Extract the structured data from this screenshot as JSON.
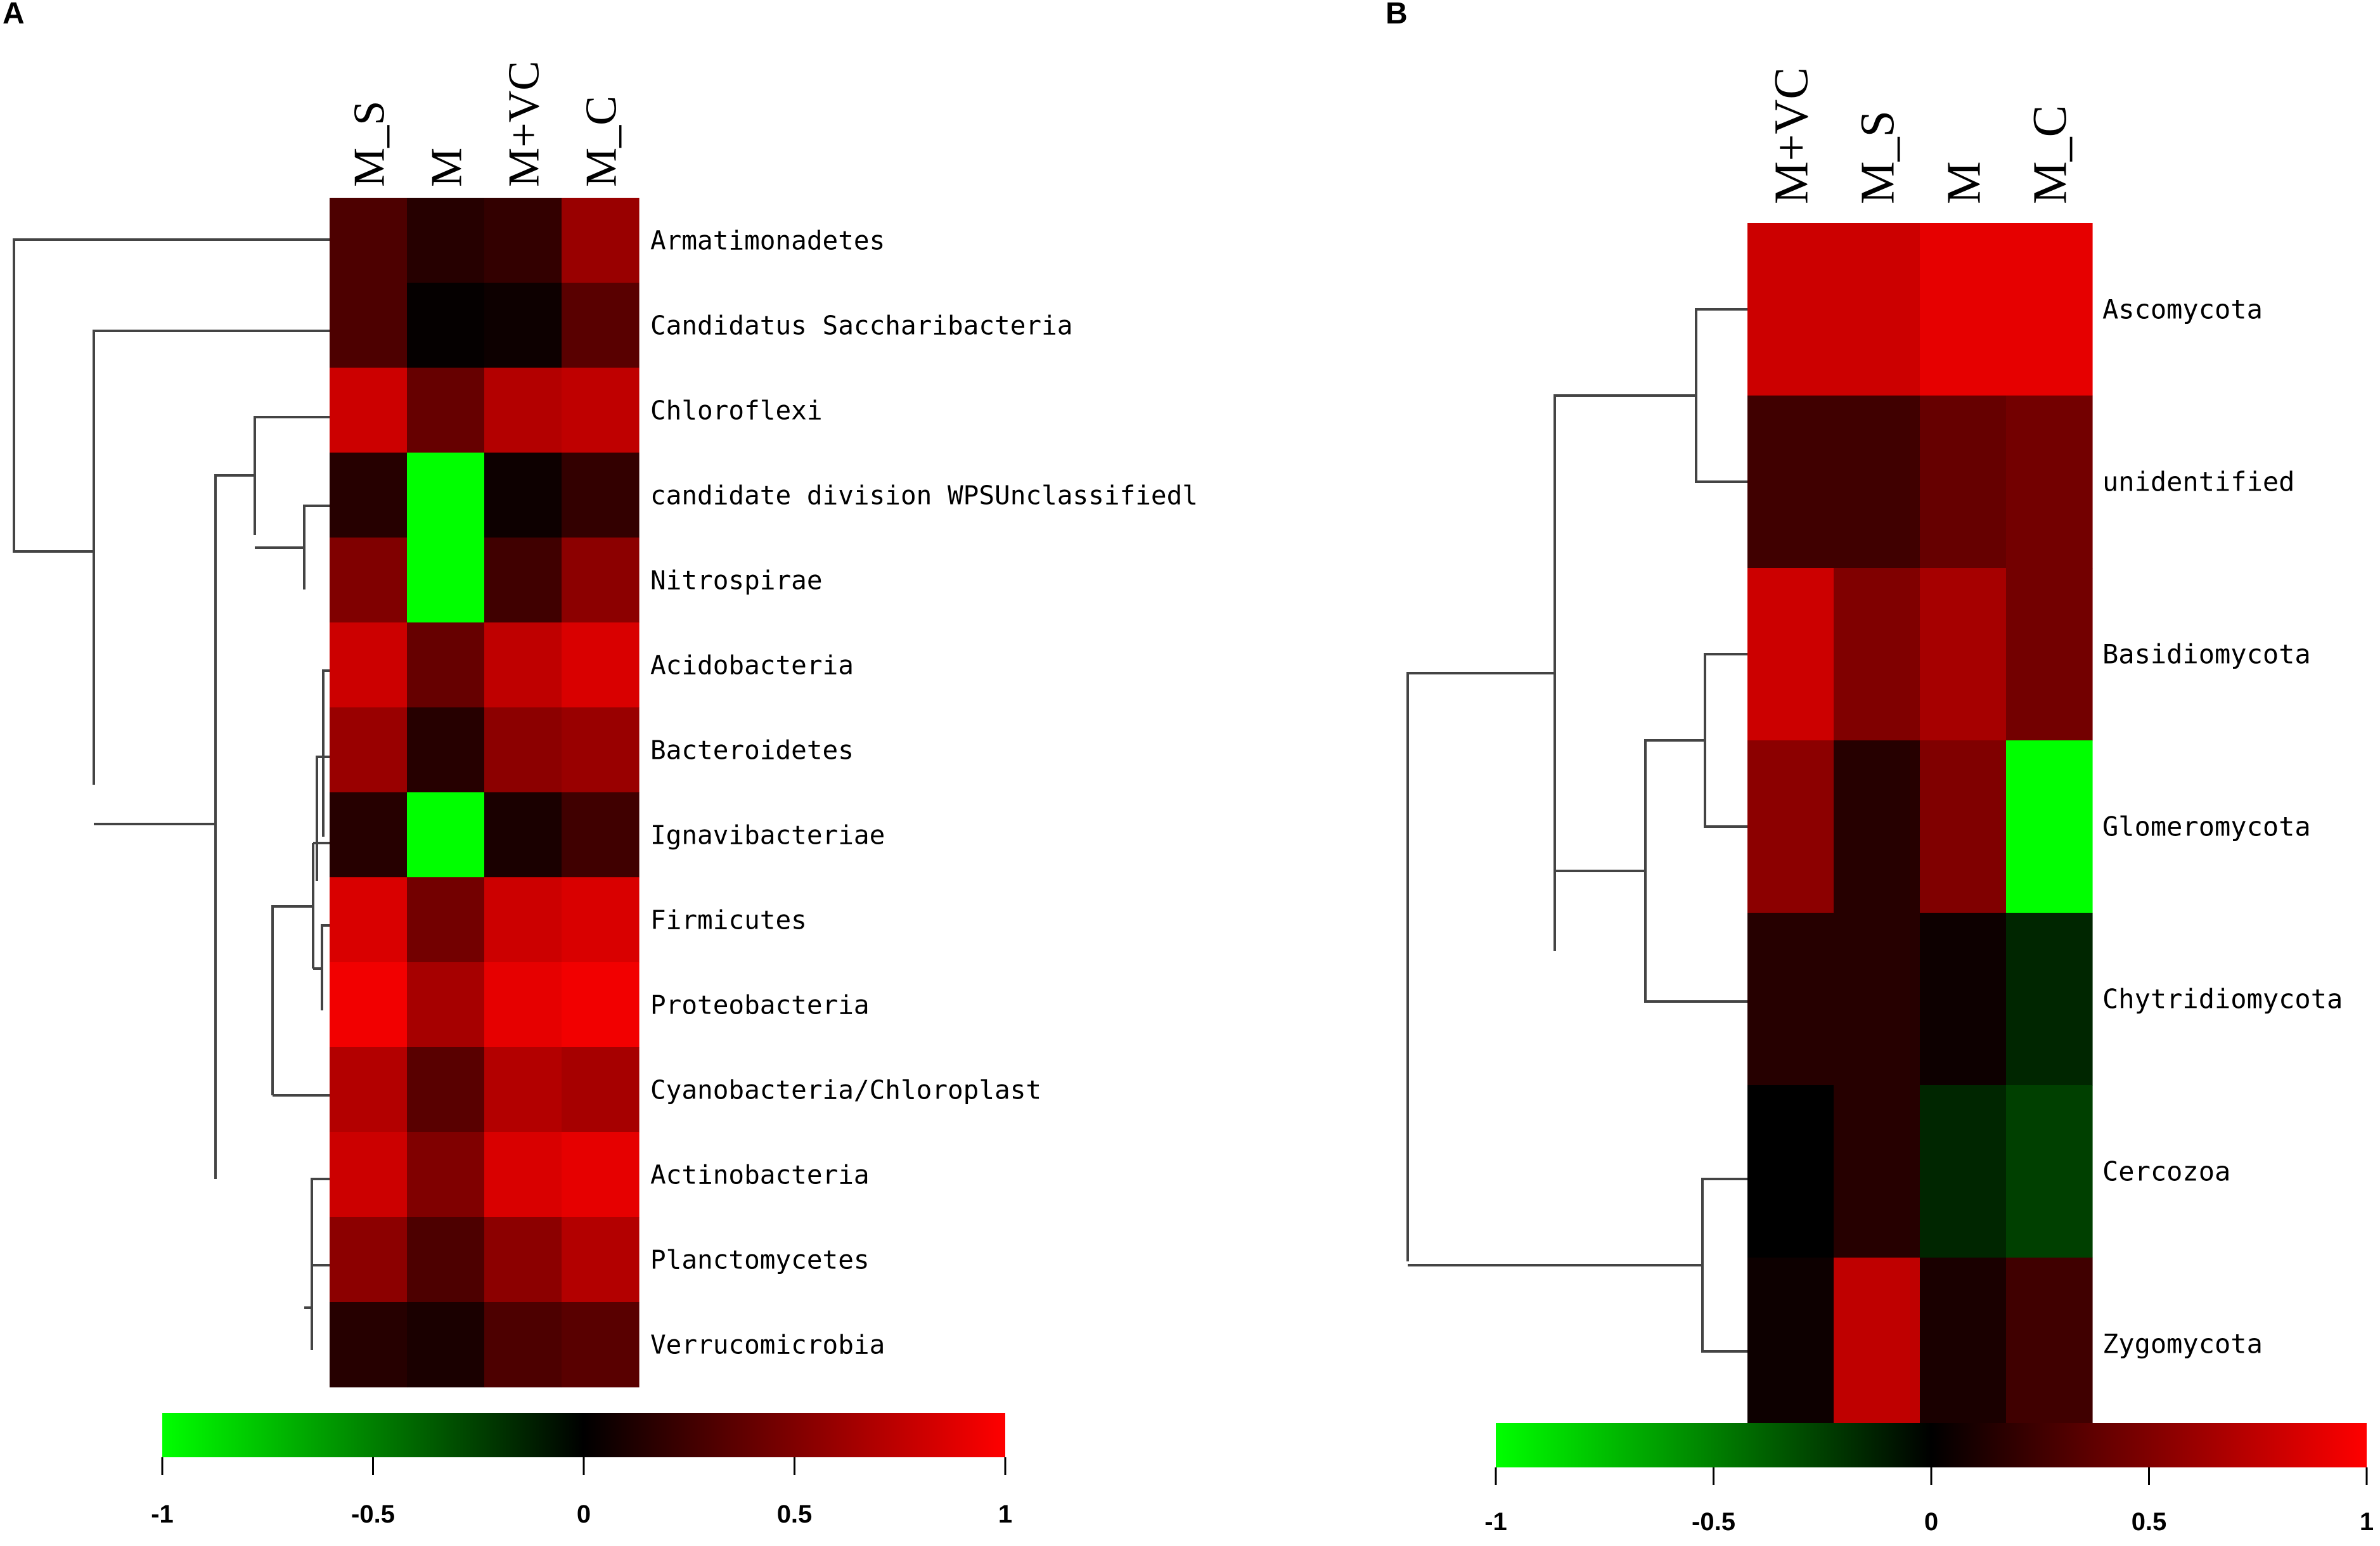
{
  "panels": [
    {
      "label": "A"
    },
    {
      "label": "B"
    }
  ],
  "chart_data": [
    {
      "type": "heatmap",
      "panel": "A",
      "columns": [
        "M_S",
        "M",
        "M+VC",
        "M_C"
      ],
      "rows": [
        "Armatimonadetes",
        "Candidatus Saccharibacteria",
        "Chloroflexi",
        "candidate division WPSUnclassifiedl",
        "Nitrospirae",
        "Acidobacteria",
        "Bacteroidetes",
        "Ignavibacteriae",
        "Firmicutes",
        "Proteobacteria",
        "Cyanobacteria/Chloroplast",
        "Actinobacteria",
        "Planctomycetes",
        "Verrucomicrobia"
      ],
      "values": [
        [
          0.3,
          0.15,
          0.2,
          0.6
        ],
        [
          0.3,
          0.02,
          0.05,
          0.35
        ],
        [
          0.8,
          0.4,
          0.7,
          0.75
        ],
        [
          0.15,
          -1.0,
          0.05,
          0.2
        ],
        [
          0.5,
          -1.0,
          0.25,
          0.55
        ],
        [
          0.8,
          0.4,
          0.75,
          0.85
        ],
        [
          0.6,
          0.15,
          0.55,
          0.6
        ],
        [
          0.15,
          -1.0,
          0.1,
          0.25
        ],
        [
          0.85,
          0.45,
          0.8,
          0.85
        ],
        [
          0.95,
          0.65,
          0.9,
          0.95
        ],
        [
          0.7,
          0.35,
          0.7,
          0.65
        ],
        [
          0.8,
          0.5,
          0.85,
          0.9
        ],
        [
          0.55,
          0.3,
          0.55,
          0.7
        ],
        [
          0.15,
          0.1,
          0.3,
          0.35
        ]
      ],
      "colorbar": {
        "min": -1,
        "max": 1,
        "ticks": [
          "-1",
          "-0.5",
          "0",
          "0.5",
          "1"
        ],
        "colors": [
          "#00ff00",
          "#000000",
          "#ff0000"
        ]
      }
    },
    {
      "type": "heatmap",
      "panel": "B",
      "columns": [
        "M+VC",
        "M_S",
        "M",
        "M_C"
      ],
      "rows": [
        "Ascomycota",
        "unidentified",
        "Basidiomycota",
        "Glomeromycota",
        "Chytridiomycota",
        "Cercozoa",
        "Zygomycota"
      ],
      "values": [
        [
          0.8,
          0.8,
          0.9,
          0.9
        ],
        [
          0.25,
          0.25,
          0.4,
          0.45
        ],
        [
          0.8,
          0.5,
          0.65,
          0.45
        ],
        [
          0.55,
          0.15,
          0.5,
          -1.0
        ],
        [
          0.15,
          0.15,
          0.05,
          -0.15
        ],
        [
          0.0,
          0.15,
          -0.15,
          -0.25
        ],
        [
          0.05,
          0.75,
          0.1,
          0.25
        ]
      ],
      "colorbar": {
        "min": -1,
        "max": 1,
        "ticks": [
          "-1",
          "-0.5",
          "0",
          "0.5",
          "1"
        ],
        "colors": [
          "#00ff00",
          "#000000",
          "#ff0000"
        ]
      }
    }
  ]
}
